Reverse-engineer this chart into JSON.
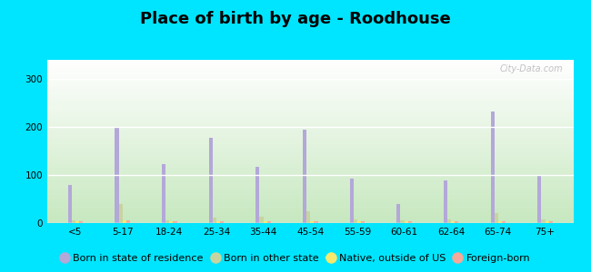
{
  "title": "Place of birth by age - Roodhouse",
  "categories": [
    "<5",
    "5-17",
    "18-24",
    "25-34",
    "35-44",
    "45-54",
    "55-59",
    "60-61",
    "62-64",
    "65-74",
    "75+"
  ],
  "series": {
    "Born in state of residence": [
      80,
      200,
      122,
      178,
      118,
      195,
      93,
      40,
      88,
      232,
      100
    ],
    "Born in other state": [
      5,
      40,
      5,
      12,
      13,
      25,
      8,
      5,
      8,
      20,
      7
    ],
    "Native, outside of US": [
      3,
      5,
      3,
      3,
      4,
      3,
      3,
      3,
      3,
      3,
      3
    ],
    "Foreign-born": [
      3,
      5,
      3,
      4,
      4,
      4,
      3,
      3,
      3,
      3,
      4
    ]
  },
  "colors": {
    "Born in state of residence": "#b3a8d8",
    "Born in other state": "#c8d4a0",
    "Native, outside of US": "#f5e96e",
    "Foreign-born": "#f4a99a"
  },
  "ylim": [
    0,
    340
  ],
  "yticks": [
    0,
    100,
    200,
    300
  ],
  "bar_width": 0.08,
  "background_top": "#ffffff",
  "background_bottom": "#c8e6c0",
  "outer_background": "#00e5ff",
  "grid_color": "#dddddd",
  "watermark": "City-Data.com",
  "title_fontsize": 13,
  "tick_fontsize": 7.5,
  "legend_fontsize": 8
}
